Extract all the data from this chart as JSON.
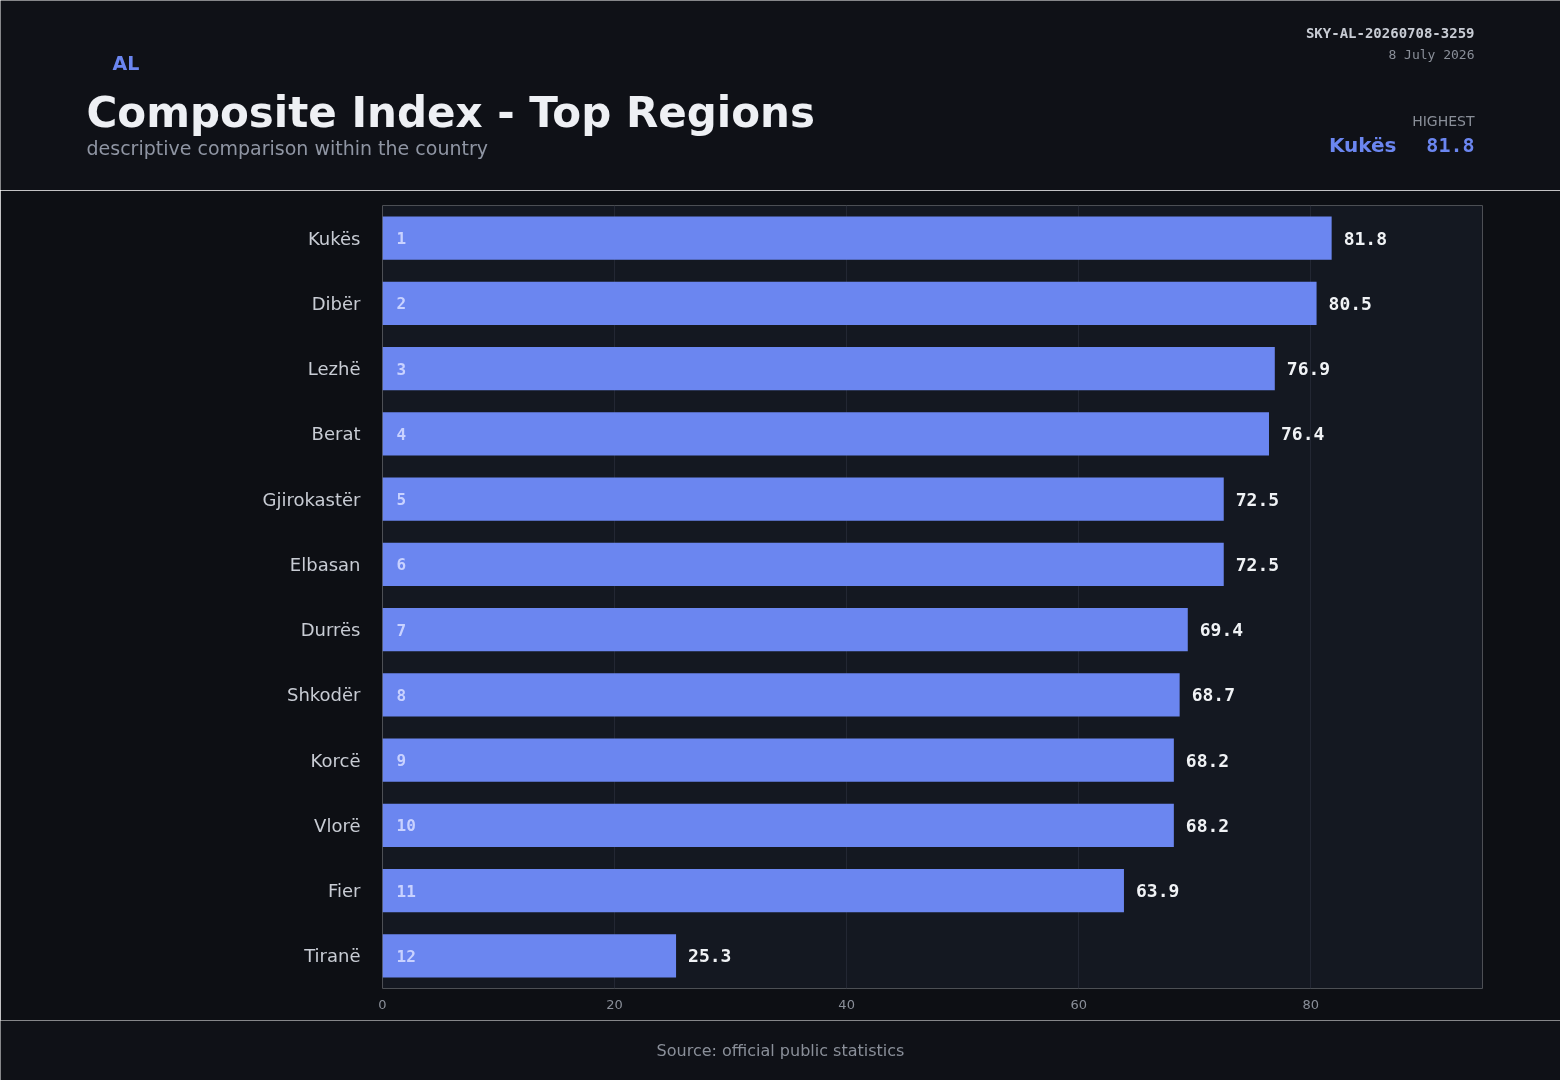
{
  "chart_data": {
    "type": "bar",
    "orientation": "horizontal",
    "title": "Composite Index - Top Regions",
    "subtitle": "descriptive comparison within the country",
    "categories": [
      "Kukës",
      "Dibër",
      "Lezhë",
      "Berat",
      "Gjirokastër",
      "Elbasan",
      "Durrës",
      "Shkodër",
      "Korcë",
      "Vlorë",
      "Fier",
      "Tiranë"
    ],
    "values": [
      81.8,
      80.5,
      76.9,
      76.4,
      72.5,
      72.5,
      69.4,
      68.7,
      68.2,
      68.2,
      63.9,
      25.3
    ],
    "color": "#6b86f0",
    "xlim": [
      0,
      94.8
    ],
    "xticks": [
      0,
      20,
      40,
      60,
      80
    ],
    "grid": "x",
    "data_labels": true,
    "legend": false,
    "annotations": [
      "AL",
      "SKY-AL-20260708-3259",
      "8 July 2026",
      "HIGHEST",
      "Kukës",
      "81.8",
      "Source: official public statistics",
      "1",
      "2",
      "3",
      "4",
      "5",
      "6",
      "7",
      "8",
      "9",
      "10",
      "11",
      "12"
    ]
  }
}
